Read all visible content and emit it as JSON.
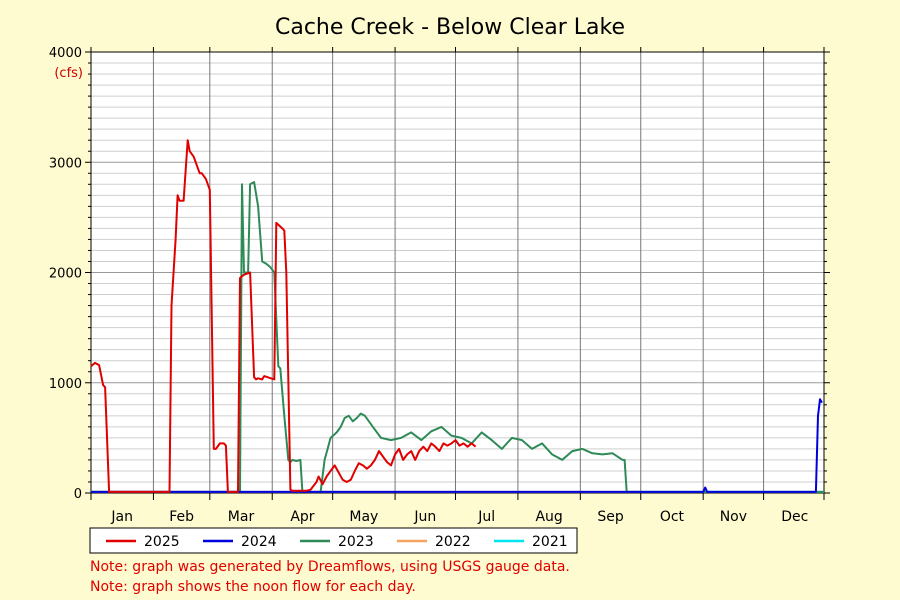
{
  "chart_data": {
    "type": "line",
    "title": "Cache Creek - Below Clear Lake",
    "unit_label": "(cfs)",
    "xlabel": "",
    "ylabel": "",
    "ylim": [
      0,
      4000
    ],
    "xlim": [
      1,
      365
    ],
    "y_ticks": [
      0,
      1000,
      2000,
      3000,
      4000
    ],
    "x_tick_labels": [
      "Jan",
      "Feb",
      "Mar",
      "Apr",
      "May",
      "Jun",
      "Jul",
      "Aug",
      "Sep",
      "Oct",
      "Nov",
      "Dec"
    ],
    "grid": true,
    "legend_position": "bottom-left",
    "x_axis_meaning": "day of year",
    "series": [
      {
        "name": "2025",
        "color": "#e00000",
        "x": [
          1,
          3,
          5,
          7,
          8,
          10,
          11,
          12,
          18,
          25,
          40,
          41,
          43,
          44,
          45,
          47,
          49,
          50,
          52,
          54,
          55,
          56,
          58,
          60,
          62,
          63,
          65,
          67,
          68,
          69,
          71,
          72,
          73,
          74,
          75,
          77,
          80,
          82,
          83,
          84,
          86,
          87,
          92,
          93,
          96,
          97,
          98,
          100,
          101,
          103,
          104,
          106,
          108,
          110,
          113,
          114,
          116,
          118,
          120,
          122,
          126,
          128,
          130,
          132,
          134,
          136,
          138,
          140,
          142,
          144,
          146,
          148,
          150,
          152,
          154,
          156,
          158,
          160,
          162,
          164,
          166,
          168,
          170,
          172,
          174,
          176,
          178,
          180,
          182,
          184,
          186,
          188,
          190,
          192
        ],
        "values": [
          1150,
          1180,
          1160,
          980,
          960,
          10,
          10,
          10,
          10,
          10,
          10,
          1700,
          2300,
          2700,
          2650,
          2650,
          3200,
          3100,
          3050,
          2950,
          2900,
          2900,
          2850,
          2750,
          400,
          400,
          450,
          450,
          430,
          10,
          10,
          10,
          10,
          10,
          1950,
          1980,
          2000,
          1050,
          1030,
          1040,
          1030,
          1060,
          1030,
          2450,
          2400,
          2380,
          2000,
          30,
          20,
          20,
          20,
          20,
          20,
          30,
          100,
          150,
          80,
          150,
          200,
          250,
          120,
          100,
          120,
          200,
          270,
          250,
          220,
          250,
          300,
          380,
          330,
          280,
          250,
          350,
          400,
          300,
          350,
          380,
          300,
          380,
          420,
          380,
          450,
          420,
          380,
          450,
          430,
          450,
          480,
          430,
          450,
          420,
          450,
          420
        ]
      },
      {
        "name": "2024",
        "color": "#0000dd",
        "x": [
          1,
          10,
          20,
          25,
          26,
          27,
          28,
          29,
          30,
          31,
          32,
          33,
          34,
          35,
          36,
          37,
          38,
          39,
          40,
          41,
          42,
          43,
          44,
          45,
          46,
          47,
          48,
          50,
          52,
          54,
          55,
          57,
          59,
          61,
          63,
          65,
          67,
          69,
          71,
          73,
          75,
          77,
          79,
          80,
          81,
          83,
          85,
          86,
          87,
          88,
          89,
          90,
          92,
          94,
          96,
          98,
          100,
          102,
          104,
          106,
          108,
          110,
          112,
          114,
          116,
          118,
          122,
          126,
          130,
          134,
          138,
          142,
          146,
          150,
          154,
          158,
          162,
          166,
          170,
          175,
          180,
          185,
          190,
          195,
          200,
          205,
          210,
          215,
          220,
          225,
          230,
          235,
          240,
          245,
          250,
          255,
          258,
          260,
          262,
          270,
          290,
          305,
          306,
          307,
          320,
          330,
          350,
          360,
          361,
          362,
          363,
          364
        ],
        "values": [
          10,
          10,
          10,
          10,
          10,
          10,
          10,
          10,
          10,
          10,
          10,
          10,
          10,
          10,
          10,
          10,
          10,
          10,
          10,
          10,
          10,
          10,
          10,
          10,
          10,
          10,
          10,
          10,
          10,
          10,
          10,
          10,
          10,
          10,
          10,
          10,
          10,
          10,
          10,
          10,
          10,
          10,
          10,
          10,
          10,
          10,
          10,
          10,
          10,
          10,
          10,
          10,
          10,
          10,
          10,
          10,
          10,
          10,
          10,
          10,
          10,
          10,
          10,
          10,
          10,
          10,
          10,
          10,
          10,
          10,
          10,
          10,
          10,
          10,
          10,
          10,
          10,
          10,
          10,
          10,
          10,
          10,
          10,
          10,
          10,
          10,
          10,
          10,
          10,
          10,
          10,
          10,
          10,
          10,
          10,
          10,
          10,
          10,
          10,
          10,
          10,
          10,
          50,
          10,
          10,
          10,
          10,
          10,
          10,
          700,
          850,
          820
        ],
        "x_override": null
      },
      {
        "name": "2023",
        "color": "#2e8b57",
        "x": [
          1,
          30,
          60,
          75,
          76,
          77,
          79,
          80,
          82,
          84,
          86,
          88,
          90,
          92,
          94,
          95,
          97,
          99,
          100,
          101,
          103,
          105,
          106,
          107,
          110,
          113,
          115,
          117,
          120,
          123,
          125,
          127,
          129,
          131,
          133,
          135,
          137,
          139,
          141,
          145,
          150,
          155,
          160,
          165,
          170,
          175,
          180,
          185,
          190,
          195,
          200,
          205,
          210,
          215,
          220,
          225,
          230,
          235,
          240,
          245,
          250,
          255,
          260,
          265,
          266,
          267,
          268,
          270,
          280,
          300,
          320,
          340,
          350,
          360,
          365
        ],
        "values": [
          10,
          10,
          10,
          10,
          2800,
          2000,
          2000,
          2800,
          2820,
          2600,
          2100,
          2080,
          2050,
          2000,
          1150,
          1130,
          700,
          300,
          280,
          300,
          290,
          300,
          10,
          10,
          10,
          10,
          10,
          300,
          500,
          550,
          600,
          680,
          700,
          650,
          680,
          720,
          700,
          650,
          600,
          500,
          480,
          500,
          550,
          480,
          560,
          600,
          520,
          500,
          450,
          550,
          480,
          400,
          500,
          480,
          400,
          450,
          350,
          300,
          380,
          400,
          360,
          350,
          360,
          300,
          300,
          10,
          10,
          10,
          10,
          10,
          10,
          10,
          10,
          10,
          10
        ]
      },
      {
        "name": "2022",
        "color": "#f4a460",
        "x": [
          1,
          30,
          60,
          90,
          95,
          100,
          120,
          150,
          180,
          210,
          240,
          270,
          272
        ],
        "values": [
          10,
          10,
          10,
          10,
          10,
          10,
          10,
          10,
          10,
          10,
          10,
          10,
          10
        ]
      },
      {
        "name": "2021",
        "color": "#00e5ee",
        "x": [
          1,
          30,
          60,
          120,
          150,
          180,
          270,
          300,
          330,
          365
        ],
        "values": [
          10,
          10,
          10,
          10,
          10,
          10,
          10,
          10,
          10,
          10
        ]
      }
    ],
    "notes": [
      "Note: graph was generated by Dreamflows, using USGS gauge data.",
      "Note: graph shows the noon flow for each day."
    ]
  }
}
